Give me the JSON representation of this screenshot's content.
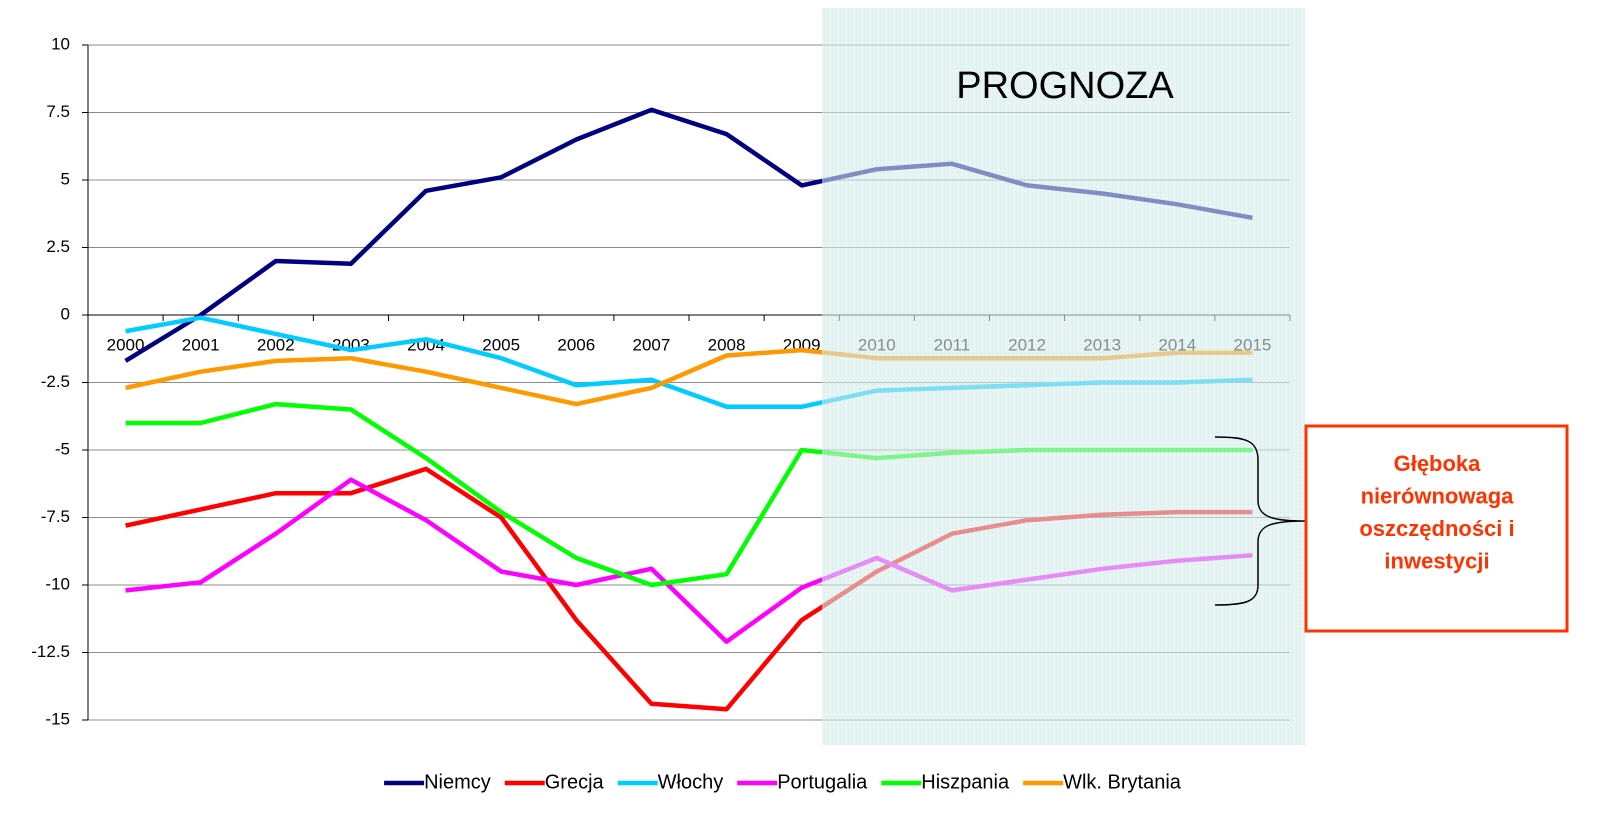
{
  "chart_data": {
    "type": "line",
    "categories": [
      "2000",
      "2001",
      "2002",
      "2003",
      "2004",
      "2005",
      "2006",
      "2007",
      "2008",
      "2009",
      "2010",
      "2011",
      "2012",
      "2013",
      "2014",
      "2015"
    ],
    "series": [
      {
        "name": "Niemcy",
        "color": "#000080",
        "values": [
          -1.7,
          0,
          2.0,
          1.9,
          4.6,
          5.1,
          6.5,
          7.6,
          6.7,
          4.8,
          5.4,
          5.6,
          4.8,
          4.5,
          4.1,
          3.6
        ]
      },
      {
        "name": "Grecja",
        "color": "#ff0000",
        "values": [
          -7.8,
          -7.2,
          -6.6,
          -6.6,
          -5.7,
          -7.5,
          -11.3,
          -14.4,
          -14.6,
          -11.3,
          -9.5,
          -8.1,
          -7.6,
          -7.4,
          -7.3,
          -7.3
        ]
      },
      {
        "name": "Włochy",
        "color": "#00ccff",
        "values": [
          -0.6,
          -0.1,
          -0.7,
          -1.3,
          -0.9,
          -1.6,
          -2.6,
          -2.4,
          -3.4,
          -3.4,
          -2.8,
          -2.7,
          -2.6,
          -2.5,
          -2.5,
          -2.4
        ]
      },
      {
        "name": "Portugalia",
        "color": "#ff00ff",
        "values": [
          -10.2,
          -9.9,
          -8.1,
          -6.1,
          -7.6,
          -9.5,
          -10.0,
          -9.4,
          -12.1,
          -10.1,
          -9.0,
          -10.2,
          -9.8,
          -9.4,
          -9.1,
          -8.9
        ]
      },
      {
        "name": "Hiszpania",
        "color": "#00ff00",
        "values": [
          -4.0,
          -4.0,
          -3.3,
          -3.5,
          -5.3,
          -7.3,
          -9.0,
          -10.0,
          -9.6,
          -5.0,
          -5.3,
          -5.1,
          -5.0,
          -5.0,
          -5.0,
          -5.0
        ]
      },
      {
        "name": "Wlk. Brytania",
        "color": "#ff9900",
        "values": [
          -2.7,
          -2.1,
          -1.7,
          -1.6,
          -2.1,
          -2.7,
          -3.3,
          -2.7,
          -1.5,
          -1.3,
          -1.6,
          -1.6,
          -1.6,
          -1.6,
          -1.4,
          -1.4
        ]
      }
    ],
    "ylim": [
      -15,
      10
    ],
    "yticks": [
      10,
      7.5,
      5,
      2.5,
      0,
      -2.5,
      -5,
      -7.5,
      -10,
      -12.5,
      -15
    ],
    "grid": true,
    "forecast_label": "PROGNOZA",
    "annotation_lines": [
      "Głęboka",
      "nierównowaga",
      "oszczędności i",
      "inwestycji"
    ]
  }
}
